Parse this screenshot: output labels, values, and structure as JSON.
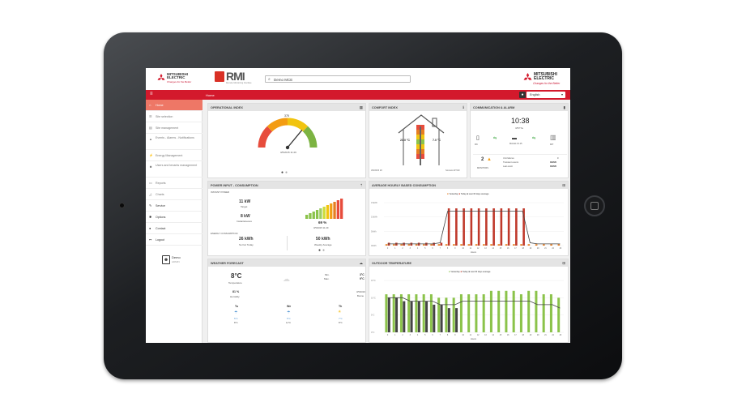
{
  "header": {
    "brand_line1": "MITSUBISHI",
    "brand_line2": "ELECTRIC",
    "brand_tagline": "Changes for the Better",
    "rmi_logo": "RMI",
    "rmi_sub": "Remote Monitoring Interface",
    "search_value": "Demo MCE",
    "search_icon": "search-icon",
    "right_brand_line1": "MITSUBISHI",
    "right_brand_line2": "ELECTRIC",
    "right_tagline": "Changes for the Better"
  },
  "topnav": {
    "menu_icon": "hamburger-icon",
    "breadcrumb": "Home",
    "language": "English"
  },
  "sidebar": {
    "items": [
      {
        "label": "Home",
        "icon": "home-icon"
      },
      {
        "label": "Site selection",
        "icon": "list-icon"
      },
      {
        "label": "Site management",
        "icon": "document-icon"
      },
      {
        "label": "Events - Alarms - Notifications",
        "icon": "warning-icon"
      },
      {
        "label": "Energy Management",
        "icon": "energy-icon"
      },
      {
        "label": "Users and tenants management",
        "icon": "users-icon"
      },
      {
        "label": "Reports",
        "icon": "folder-icon"
      },
      {
        "label": "Charts",
        "icon": "chart-icon"
      },
      {
        "label": "Service",
        "icon": "wrench-icon"
      },
      {
        "label": "Options",
        "icon": "gear-icon"
      },
      {
        "label": "Contact",
        "icon": "pin-icon"
      },
      {
        "label": "Logout",
        "icon": "logout-icon"
      }
    ],
    "user_name": "Demo",
    "user_role": "ADMIN"
  },
  "operational": {
    "title": "OPERATIONAL INDEX",
    "gauge_value": "375",
    "gauge_fraction": 0.72,
    "date": "3/5/2015 11:29"
  },
  "comfort": {
    "title": "COMFORT INDEX",
    "inside_temp": "23.0 °C",
    "outside_temp": "7.0 °C",
    "date_left": "3/5/2015 20",
    "date_right": "Sonnets 8/7/20"
  },
  "comm": {
    "title": "COMMUNICATION & ALARM",
    "time": "10:38",
    "date": "3/5/Thu",
    "device_labels": [
      "RN",
      "MAGIA 3.0.15",
      "MIT"
    ],
    "alarm_count": "2",
    "alarm_label": "MONITORS",
    "rows": [
      {
        "label": "Unit failures",
        "value": "0"
      },
      {
        "label": "Transient events",
        "value": "0/0/0/0"
      },
      {
        "label": "Last event",
        "value": "0/0/0/0"
      }
    ]
  },
  "power": {
    "title": "POWER INPUT - CONSUMPTION",
    "sub_instant": "INSTANT POWER",
    "target_value": "11 kW",
    "target_label": "Target",
    "instant_value": "8 kW",
    "instant_label": "Instantaneous",
    "percent": "69 %",
    "date": "3/5/2015 11:29",
    "sub_energy": "ENERGY CONSUMPTION",
    "today_value": "26 kWh",
    "today_label": "So Far Today",
    "weekly_value": "50 kWh",
    "weekly_label": "Weekly Average"
  },
  "hourly": {
    "title": "AVERAGE HOURLY BASED CONSUMPTION",
    "legend": [
      "Yesterday",
      "Today",
      "Last 30 days average"
    ],
    "xlabel": "Hours",
    "y_ticks": [
      "15kWh",
      "10kWh",
      "5kWh",
      "0kWh"
    ]
  },
  "weather": {
    "title": "WEATHER FORECAST",
    "temp": "8°C",
    "temp_label": "Temperature",
    "humidity": "81 %",
    "humidity_label": "Humidity",
    "min_label": "Min.",
    "max_label": "Max.",
    "min_value": "3°C",
    "max_value": "9°C",
    "date": "3/5/2016",
    "city": "Bonne",
    "days": [
      {
        "name": "Tu",
        "min": "5°C",
        "max": "8°C"
      },
      {
        "name": "We",
        "min": "5°C",
        "max": "11°C"
      },
      {
        "name": "Th",
        "min": "7°C",
        "max": "8°C"
      }
    ]
  },
  "outdoor": {
    "title": "OUTDOOR TEMPERATURE",
    "legend": [
      "Yesterday",
      "Today",
      "Last 30 days average"
    ],
    "xlabel": "Hours",
    "y_ticks": [
      "15°C",
      "10°C",
      "5°C",
      "0°C"
    ]
  },
  "colors": {
    "brand_red": "#d3192c",
    "active_sidebar": "#ee7766",
    "bar_red": "#c0392b",
    "bar_orange": "#e67e22",
    "bar_green": "#8bc34a",
    "bar_dark": "#444444"
  },
  "chart_data": [
    {
      "type": "bar",
      "title": "AVERAGE HOURLY BASED CONSUMPTION",
      "xlabel": "Hours",
      "ylim": [
        0,
        15
      ],
      "categories": [
        "0",
        "1",
        "2",
        "3",
        "4",
        "5",
        "6",
        "7",
        "8",
        "9",
        "10",
        "11",
        "12",
        "13",
        "14",
        "15",
        "16",
        "17",
        "18",
        "19",
        "20",
        "21",
        "22",
        "23"
      ],
      "series": [
        {
          "name": "Yesterday",
          "values": [
            0.5,
            0.5,
            0.5,
            0.5,
            0.5,
            0.5,
            0.5,
            0.5,
            0.5,
            0.5,
            0.5,
            0.5,
            0.5,
            0.5,
            0.5,
            0.5,
            0.5,
            0.5,
            0.5,
            0.5,
            0.5,
            0.5,
            0.5,
            0.5
          ]
        },
        {
          "name": "Today",
          "values": [
            1,
            1,
            1,
            1,
            1,
            1,
            1,
            1,
            13,
            13,
            13,
            13,
            13,
            13,
            13,
            13,
            13,
            13,
            13,
            0,
            0,
            0,
            0,
            0
          ]
        },
        {
          "name": "Last 30 days average",
          "values": [
            0.6,
            0.6,
            0.6,
            0.6,
            0.6,
            0.6,
            0.6,
            1,
            12,
            12,
            12,
            12,
            12,
            12,
            12,
            12,
            12,
            12,
            12,
            1,
            0.6,
            0.6,
            0.6,
            0.6
          ]
        }
      ]
    },
    {
      "type": "bar",
      "title": "OUTDOOR TEMPERATURE",
      "xlabel": "Hours",
      "ylim": [
        0,
        15
      ],
      "categories": [
        "0",
        "1",
        "2",
        "3",
        "4",
        "5",
        "6",
        "7",
        "8",
        "9",
        "10",
        "11",
        "12",
        "13",
        "14",
        "15",
        "16",
        "17",
        "18",
        "19",
        "20",
        "21",
        "22",
        "23"
      ],
      "series": [
        {
          "name": "Yesterday",
          "values": [
            11,
            11,
            11,
            11,
            11,
            11,
            11,
            10,
            10,
            10,
            11,
            11,
            11,
            11,
            12,
            12,
            12,
            12,
            11,
            12,
            12,
            11,
            11,
            10
          ]
        },
        {
          "name": "Today",
          "values": [
            10,
            10,
            9,
            9,
            9,
            9,
            8,
            8,
            7,
            7,
            0,
            0,
            0,
            0,
            0,
            0,
            0,
            0,
            0,
            0,
            0,
            0,
            0,
            0
          ]
        },
        {
          "name": "Last 30 days average",
          "values": [
            10,
            10,
            10,
            9,
            9,
            9,
            9,
            8,
            8,
            8,
            9,
            9,
            9,
            9,
            9,
            9,
            9,
            9,
            9,
            9,
            8,
            8,
            8,
            7
          ]
        }
      ]
    }
  ]
}
